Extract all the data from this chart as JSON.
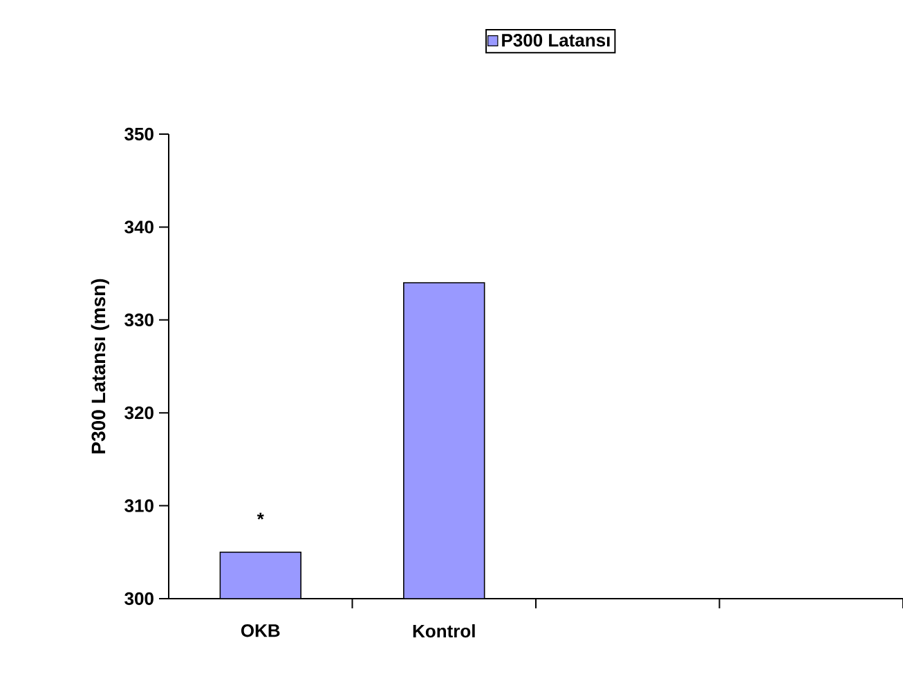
{
  "chart_data": {
    "type": "bar",
    "ylabel": "P300 Latansı (msn)",
    "categories": [
      "OKB",
      "Kontrol",
      null,
      null
    ],
    "series": [
      {
        "name": "P300 Latansı",
        "color": "#9999ff",
        "values": [
          305,
          334,
          null,
          null
        ]
      }
    ],
    "ylim": [
      300,
      350
    ],
    "yticks": [
      300,
      310,
      320,
      330,
      340,
      350
    ],
    "grid": false,
    "legend": "top",
    "annotations": [
      "*"
    ]
  }
}
